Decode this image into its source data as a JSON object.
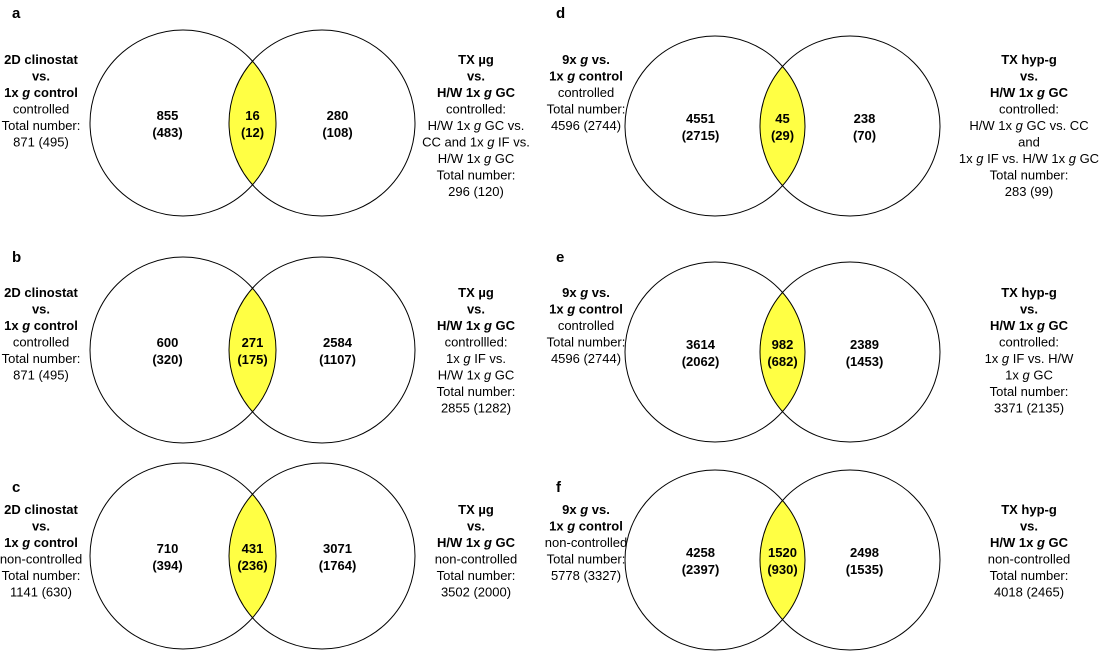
{
  "accent": {
    "overlap_fill": "#ffff44",
    "stroke": "#000000"
  },
  "panels": [
    {
      "letter": "a",
      "left_label": [
        [
          {
            "t": "2D clinostat",
            "b": true
          }
        ],
        [
          {
            "t": "vs.",
            "b": true
          }
        ],
        [
          {
            "t": "1x ",
            "b": true
          },
          {
            "t": "g",
            "b": true,
            "i": true
          },
          {
            "t": " control",
            "b": true
          }
        ],
        [
          {
            "t": "controlled"
          }
        ],
        [
          {
            "t": "Total number:"
          }
        ],
        [
          {
            "t": "871 (495)"
          }
        ]
      ],
      "left_count": [
        "855",
        "(483)"
      ],
      "overlap_count": [
        "16",
        "(12)"
      ],
      "right_count": [
        "280",
        "(108)"
      ],
      "right_label": [
        [
          {
            "t": "TX µg",
            "b": true
          }
        ],
        [
          {
            "t": "vs.",
            "b": true
          }
        ],
        [
          {
            "t": "H/W 1x ",
            "b": true
          },
          {
            "t": "g",
            "b": true,
            "i": true
          },
          {
            "t": " GC",
            "b": true
          }
        ],
        [
          {
            "t": "controlled:"
          }
        ],
        [
          {
            "t": "H/W 1x "
          },
          {
            "t": "g",
            "i": true
          },
          {
            "t": " GC vs."
          }
        ],
        [
          {
            "t": "CC and 1x "
          },
          {
            "t": "g",
            "i": true
          },
          {
            "t": " IF vs."
          }
        ],
        [
          {
            "t": "H/W 1x "
          },
          {
            "t": "g",
            "i": true
          },
          {
            "t": " GC"
          }
        ],
        [
          {
            "t": "Total number:"
          }
        ],
        [
          {
            "t": "296 (120)"
          }
        ]
      ]
    },
    {
      "letter": "b",
      "left_label": [
        [
          {
            "t": "2D clinostat",
            "b": true
          }
        ],
        [
          {
            "t": "vs.",
            "b": true
          }
        ],
        [
          {
            "t": "1x ",
            "b": true
          },
          {
            "t": "g",
            "b": true,
            "i": true
          },
          {
            "t": " control",
            "b": true
          }
        ],
        [
          {
            "t": "controlled"
          }
        ],
        [
          {
            "t": "Total number:"
          }
        ],
        [
          {
            "t": "871 (495)"
          }
        ]
      ],
      "left_count": [
        "600",
        "(320)"
      ],
      "overlap_count": [
        "271",
        "(175)"
      ],
      "right_count": [
        "2584",
        "(1107)"
      ],
      "right_label": [
        [
          {
            "t": "TX µg",
            "b": true
          }
        ],
        [
          {
            "t": "vs.",
            "b": true
          }
        ],
        [
          {
            "t": "H/W 1x ",
            "b": true
          },
          {
            "t": "g",
            "b": true,
            "i": true
          },
          {
            "t": " GC",
            "b": true
          }
        ],
        [
          {
            "t": "controllled:"
          }
        ],
        [
          {
            "t": "1x "
          },
          {
            "t": "g",
            "i": true
          },
          {
            "t": " IF vs."
          }
        ],
        [
          {
            "t": "H/W 1x "
          },
          {
            "t": "g",
            "i": true
          },
          {
            "t": " GC"
          }
        ],
        [
          {
            "t": "Total number:"
          }
        ],
        [
          {
            "t": "2855 (1282)"
          }
        ]
      ]
    },
    {
      "letter": "c",
      "left_label": [
        [
          {
            "t": "2D clinostat",
            "b": true
          }
        ],
        [
          {
            "t": "vs.",
            "b": true
          }
        ],
        [
          {
            "t": "1x ",
            "b": true
          },
          {
            "t": "g",
            "b": true,
            "i": true
          },
          {
            "t": " control",
            "b": true
          }
        ],
        [
          {
            "t": "non-controlled"
          }
        ],
        [
          {
            "t": "Total number:"
          }
        ],
        [
          {
            "t": "1141 (630)"
          }
        ]
      ],
      "left_count": [
        "710",
        "(394)"
      ],
      "overlap_count": [
        "431",
        "(236)"
      ],
      "right_count": [
        "3071",
        "(1764)"
      ],
      "right_label": [
        [
          {
            "t": "TX µg",
            "b": true
          }
        ],
        [
          {
            "t": "vs.",
            "b": true
          }
        ],
        [
          {
            "t": "H/W 1x ",
            "b": true
          },
          {
            "t": "g",
            "b": true,
            "i": true
          },
          {
            "t": " GC",
            "b": true
          }
        ],
        [
          {
            "t": "non-controlled"
          }
        ],
        [
          {
            "t": "Total number:"
          }
        ],
        [
          {
            "t": "3502 (2000)"
          }
        ]
      ]
    },
    {
      "letter": "d",
      "left_label": [
        [
          {
            "t": "9x ",
            "b": true
          },
          {
            "t": "g",
            "b": true,
            "i": true
          },
          {
            "t": " vs.",
            "b": true
          }
        ],
        [
          {
            "t": "1x ",
            "b": true
          },
          {
            "t": "g",
            "b": true,
            "i": true
          },
          {
            "t": " control",
            "b": true
          }
        ],
        [
          {
            "t": "controlled"
          }
        ],
        [
          {
            "t": "Total number:"
          }
        ],
        [
          {
            "t": "4596 (2744)"
          }
        ]
      ],
      "left_count": [
        "4551",
        "(2715)"
      ],
      "overlap_count": [
        "45",
        "(29)"
      ],
      "right_count": [
        "238",
        "(70)"
      ],
      "right_label": [
        [
          {
            "t": "TX hyp-g",
            "b": true
          }
        ],
        [
          {
            "t": "vs.",
            "b": true
          }
        ],
        [
          {
            "t": "H/W 1x ",
            "b": true
          },
          {
            "t": "g",
            "b": true,
            "i": true
          },
          {
            "t": " GC",
            "b": true
          }
        ],
        [
          {
            "t": "controlled:"
          }
        ],
        [
          {
            "t": "H/W 1x "
          },
          {
            "t": "g",
            "i": true
          },
          {
            "t": " GC vs. CC"
          }
        ],
        [
          {
            "t": "and"
          }
        ],
        [
          {
            "t": "1x "
          },
          {
            "t": "g",
            "i": true
          },
          {
            "t": " IF vs. H/W 1x "
          },
          {
            "t": "g",
            "i": true
          },
          {
            "t": " GC"
          }
        ],
        [
          {
            "t": "Total number:"
          }
        ],
        [
          {
            "t": "283 (99)"
          }
        ]
      ]
    },
    {
      "letter": "e",
      "left_label": [
        [
          {
            "t": "9x ",
            "b": true
          },
          {
            "t": "g",
            "b": true,
            "i": true
          },
          {
            "t": " vs.",
            "b": true
          }
        ],
        [
          {
            "t": "1x ",
            "b": true
          },
          {
            "t": "g",
            "b": true,
            "i": true
          },
          {
            "t": " control",
            "b": true
          }
        ],
        [
          {
            "t": "controlled"
          }
        ],
        [
          {
            "t": "Total number:"
          }
        ],
        [
          {
            "t": "4596 (2744)"
          }
        ]
      ],
      "left_count": [
        "3614",
        "(2062)"
      ],
      "overlap_count": [
        "982",
        "(682)"
      ],
      "right_count": [
        "2389",
        "(1453)"
      ],
      "right_label": [
        [
          {
            "t": "TX hyp-g",
            "b": true
          }
        ],
        [
          {
            "t": "vs.",
            "b": true
          }
        ],
        [
          {
            "t": "H/W 1x ",
            "b": true
          },
          {
            "t": "g",
            "b": true,
            "i": true
          },
          {
            "t": " GC",
            "b": true
          }
        ],
        [
          {
            "t": "controlled:"
          }
        ],
        [
          {
            "t": "1x "
          },
          {
            "t": "g",
            "i": true
          },
          {
            "t": " IF vs. H/W"
          }
        ],
        [
          {
            "t": "1x "
          },
          {
            "t": "g",
            "i": true
          },
          {
            "t": " GC"
          }
        ],
        [
          {
            "t": "Total number:"
          }
        ],
        [
          {
            "t": "3371 (2135)"
          }
        ]
      ]
    },
    {
      "letter": "f",
      "left_label": [
        [
          {
            "t": "9x ",
            "b": true
          },
          {
            "t": "g",
            "b": true,
            "i": true
          },
          {
            "t": " vs.",
            "b": true
          }
        ],
        [
          {
            "t": "1x ",
            "b": true
          },
          {
            "t": "g",
            "b": true,
            "i": true
          },
          {
            "t": " control",
            "b": true
          }
        ],
        [
          {
            "t": "non-controlled"
          }
        ],
        [
          {
            "t": "Total number:"
          }
        ],
        [
          {
            "t": "5778 (3327)"
          }
        ]
      ],
      "left_count": [
        "4258",
        "(2397)"
      ],
      "overlap_count": [
        "1520",
        "(930)"
      ],
      "right_count": [
        "2498",
        "(1535)"
      ],
      "right_label": [
        [
          {
            "t": "TX hyp-g",
            "b": true
          }
        ],
        [
          {
            "t": "vs.",
            "b": true
          }
        ],
        [
          {
            "t": "H/W 1x ",
            "b": true
          },
          {
            "t": "g",
            "b": true,
            "i": true
          },
          {
            "t": " GC",
            "b": true
          }
        ],
        [
          {
            "t": "non-controlled"
          }
        ],
        [
          {
            "t": "Total number:"
          }
        ],
        [
          {
            "t": "4018 (2465)"
          }
        ]
      ]
    }
  ]
}
